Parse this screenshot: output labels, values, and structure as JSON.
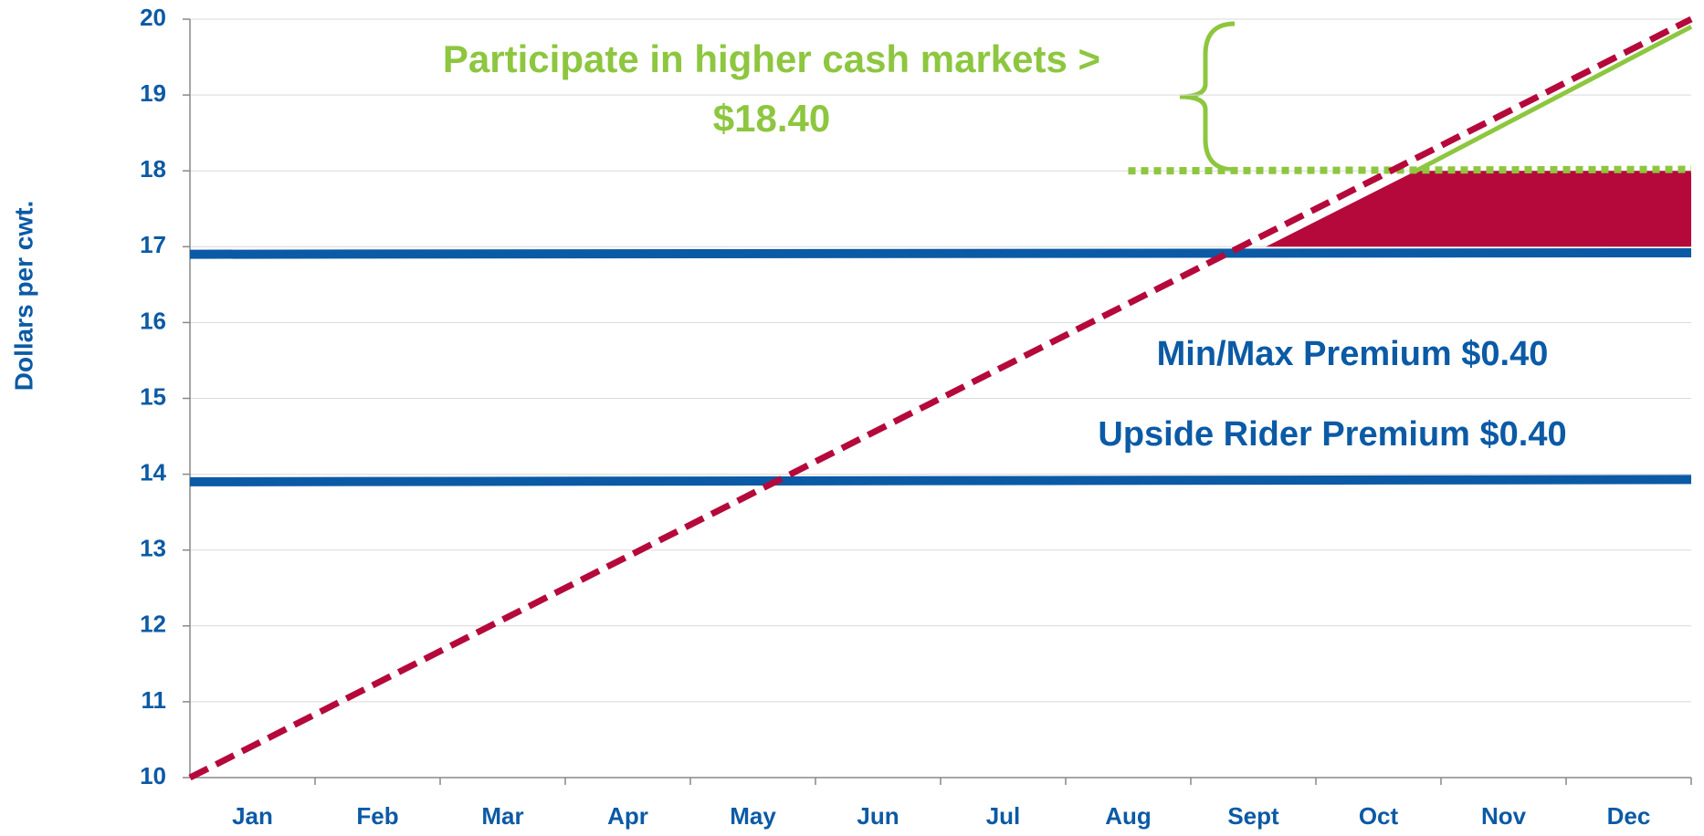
{
  "chart_data": {
    "type": "line",
    "y_label": "Dollars per cwt.",
    "categories": [
      "Jan",
      "Feb",
      "Mar",
      "Apr",
      "May",
      "Jun",
      "Jul",
      "Aug",
      "Sept",
      "Oct",
      "Nov",
      "Dec"
    ],
    "xlim": [
      0,
      12
    ],
    "ylim": [
      10,
      20
    ],
    "yticks": [
      10,
      11,
      12,
      13,
      14,
      15,
      16,
      17,
      18,
      19,
      20
    ],
    "grid": true,
    "series": [
      {
        "color": "#b5093b",
        "style": "area",
        "x": [
          8.6,
          9.8,
          12
        ],
        "values": [
          17,
          18,
          18
        ],
        "base": 17
      },
      {
        "color": "#0b5aa5",
        "style": "solid",
        "x": [
          0,
          12
        ],
        "values": [
          16.9,
          16.92
        ]
      },
      {
        "color": "#0b5aa5",
        "style": "solid",
        "x": [
          0,
          12
        ],
        "values": [
          13.9,
          13.93
        ]
      },
      {
        "color": "#8dc63f",
        "style": "dotted",
        "x": [
          7.5,
          12
        ],
        "values": [
          18,
          18.02
        ]
      },
      {
        "color": "#8dc63f",
        "style": "solid",
        "x": [
          9.8,
          12
        ],
        "values": [
          18,
          19.9
        ]
      },
      {
        "color": "#b5093b",
        "style": "dashed",
        "x": [
          0,
          12
        ],
        "values": [
          10,
          20
        ]
      }
    ],
    "annotations": [
      {
        "lines": [
          "Participate in higher cash markets >",
          "$18.40"
        ],
        "color": "#8dc63f"
      },
      {
        "lines": [
          "Min/Max Premium $0.40"
        ],
        "color": "#0b5aa5"
      },
      {
        "lines": [
          "Upside Rider Premium $0.40"
        ],
        "color": "#0b5aa5"
      }
    ]
  }
}
